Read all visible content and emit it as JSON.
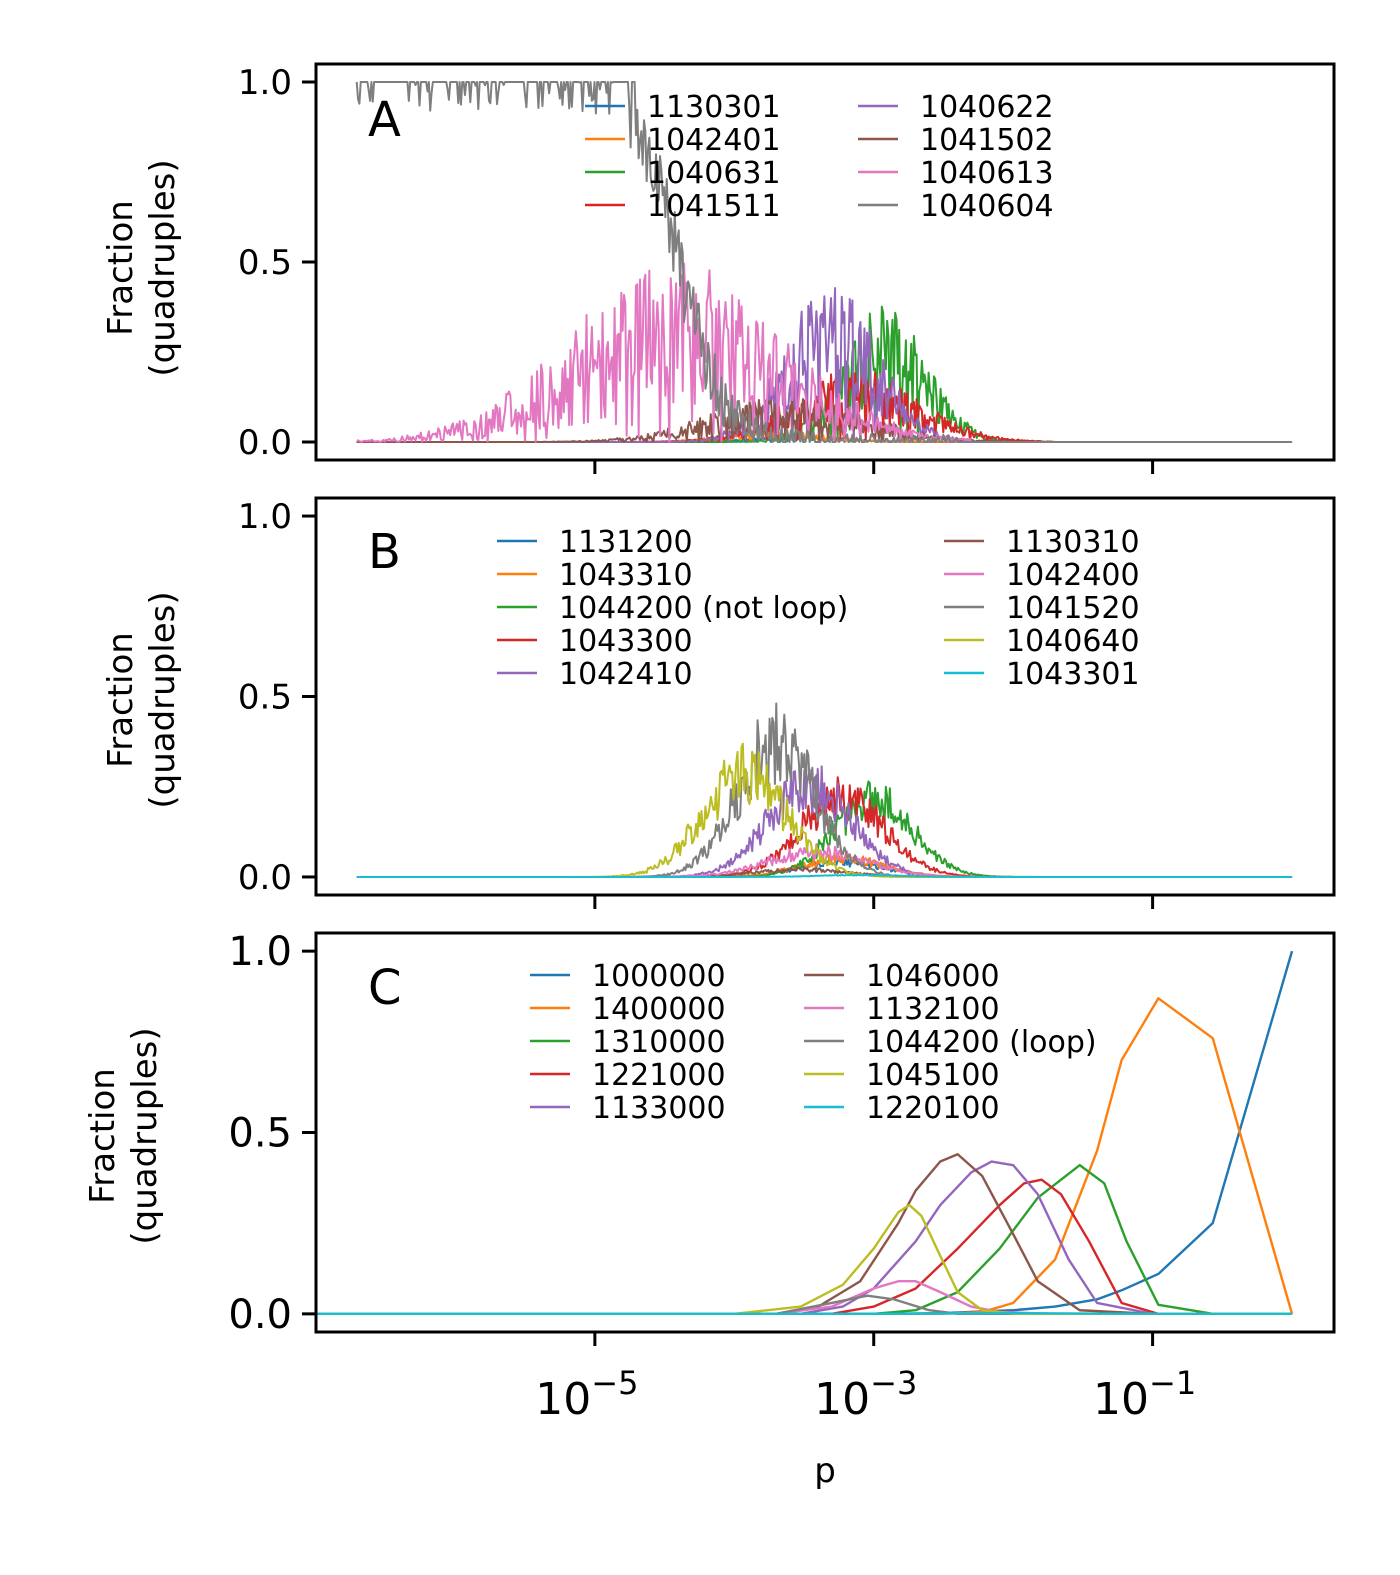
{
  "chart_data": [
    {
      "type": "line",
      "panel_label": "A",
      "title": "",
      "xlabel": "",
      "ylabel": [
        "Fraction",
        "(quadruples)"
      ],
      "xscale": "log",
      "xlim": [
        1e-07,
        2
      ],
      "ylim": [
        -0.05,
        1.05
      ],
      "yticks": [
        0.0,
        0.5,
        1.0
      ],
      "ytick_labels": [
        "0.0",
        "0.5",
        "1.0"
      ],
      "grid": false,
      "legend_columns": 2,
      "legend_placement": "top-center",
      "series": [
        {
          "name": "1130301",
          "color": "#1f77b4",
          "noisy": true,
          "peak_x": 0.0003,
          "peak_y": 0.01,
          "width": 0.35,
          "x_min": 3e-06,
          "x_max": 0.01
        },
        {
          "name": "1042401",
          "color": "#ff7f0e",
          "noisy": true,
          "peak_x": 0.0002,
          "peak_y": 0.02,
          "width": 0.35,
          "x_min": 1e-05,
          "x_max": 0.01
        },
        {
          "name": "1040631",
          "color": "#2ca02c",
          "noisy": true,
          "peak_x": 0.0012,
          "peak_y": 0.25,
          "width": 0.3,
          "x_min": 3e-05,
          "x_max": 0.02
        },
        {
          "name": "1041511",
          "color": "#d62728",
          "noisy": true,
          "peak_x": 0.00075,
          "peak_y": 0.13,
          "width": 0.45,
          "x_min": 1e-05,
          "x_max": 0.02
        },
        {
          "name": "1040622",
          "color": "#9467bd",
          "noisy": true,
          "peak_x": 0.0005,
          "peak_y": 0.28,
          "width": 0.33,
          "x_min": 1e-05,
          "x_max": 0.02
        },
        {
          "name": "1041502",
          "color": "#8c564b",
          "noisy": true,
          "peak_x": 0.00025,
          "peak_y": 0.08,
          "width": 0.55,
          "x_min": 3e-06,
          "x_max": 0.01
        },
        {
          "name": "1040613",
          "color": "#e377c2",
          "noisy": true,
          "peak_x": 4e-05,
          "peak_y": 0.3,
          "width": 0.75,
          "x_min": 1e-07,
          "x_max": 0.005
        },
        {
          "name": "1040604",
          "color": "#7f7f7f",
          "noisy": true,
          "sigmoid_mid": 4e-05,
          "sigmoid_width": 0.35,
          "x_min": 1e-07,
          "x_max": 1.0
        }
      ]
    },
    {
      "type": "line",
      "panel_label": "B",
      "title": "",
      "xlabel": "",
      "ylabel": [
        "Fraction",
        "(quadruples)"
      ],
      "xscale": "log",
      "xlim": [
        1e-07,
        2
      ],
      "ylim": [
        -0.05,
        1.05
      ],
      "yticks": [
        0.0,
        0.5,
        1.0
      ],
      "ytick_labels": [
        "0.0",
        "0.5",
        "1.0"
      ],
      "grid": false,
      "legend_columns": 2,
      "legend_placement": "top-center",
      "series": [
        {
          "name": "1131200",
          "color": "#1f77b4",
          "noisy": true,
          "peak_x": 0.0006,
          "peak_y": 0.04,
          "width": 0.3,
          "x_min": 1e-07,
          "x_max": 1.0
        },
        {
          "name": "1043310",
          "color": "#ff7f0e",
          "noisy": true,
          "peak_x": 0.0006,
          "peak_y": 0.05,
          "width": 0.3,
          "x_min": 1e-07,
          "x_max": 1.0
        },
        {
          "name": "1044200 (not loop)",
          "color": "#2ca02c",
          "noisy": true,
          "peak_x": 0.001,
          "peak_y": 0.21,
          "width": 0.28,
          "x_min": 1e-07,
          "x_max": 1.0
        },
        {
          "name": "1043300",
          "color": "#d62728",
          "noisy": true,
          "peak_x": 0.0006,
          "peak_y": 0.22,
          "width": 0.3,
          "x_min": 1e-07,
          "x_max": 1.0
        },
        {
          "name": "1042410",
          "color": "#9467bd",
          "noisy": true,
          "peak_x": 0.00035,
          "peak_y": 0.25,
          "width": 0.3,
          "x_min": 1e-07,
          "x_max": 1.0
        },
        {
          "name": "1130310",
          "color": "#8c564b",
          "noisy": true,
          "peak_x": 0.0003,
          "peak_y": 0.02,
          "width": 0.35,
          "x_min": 1e-07,
          "x_max": 1.0
        },
        {
          "name": "1042400",
          "color": "#e377c2",
          "noisy": true,
          "peak_x": 0.0004,
          "peak_y": 0.07,
          "width": 0.35,
          "x_min": 1e-07,
          "x_max": 1.0
        },
        {
          "name": "1041520",
          "color": "#7f7f7f",
          "noisy": true,
          "peak_x": 0.0002,
          "peak_y": 0.37,
          "width": 0.28,
          "x_min": 1e-07,
          "x_max": 1.0
        },
        {
          "name": "1040640",
          "color": "#bcbd22",
          "noisy": true,
          "peak_x": 0.00012,
          "peak_y": 0.28,
          "width": 0.3,
          "x_min": 1e-07,
          "x_max": 1.0
        },
        {
          "name": "1043301",
          "color": "#17becf",
          "noisy": true,
          "peak_x": 0.0008,
          "peak_y": 0.005,
          "width": 0.3,
          "x_min": 1e-07,
          "x_max": 1.0
        }
      ]
    },
    {
      "type": "line",
      "panel_label": "C",
      "title": "",
      "xlabel": "p",
      "ylabel": [
        "Fraction",
        "(quadruples)"
      ],
      "xscale": "log",
      "xlim": [
        1e-07,
        2
      ],
      "ylim": [
        -0.05,
        1.05
      ],
      "yticks": [
        0.0,
        0.5,
        1.0
      ],
      "ytick_labels": [
        "0.0",
        "0.5",
        "1.0"
      ],
      "xticks": [
        1e-05,
        0.001,
        0.1
      ],
      "xtick_labels": [
        {
          "base": "10",
          "exp": "−5"
        },
        {
          "base": "10",
          "exp": "−3"
        },
        {
          "base": "10",
          "exp": "−1"
        }
      ],
      "grid": false,
      "legend_columns": 2,
      "legend_placement": "top-center",
      "series": [
        {
          "name": "1000000",
          "color": "#1f77b4",
          "x": [
            1e-07,
            0.001,
            0.003,
            0.01,
            0.02,
            0.04,
            0.06,
            0.11,
            0.27,
            1.0
          ],
          "y": [
            0,
            0,
            0.002,
            0.01,
            0.02,
            0.04,
            0.065,
            0.11,
            0.25,
            1.0
          ]
        },
        {
          "name": "1400000",
          "color": "#ff7f0e",
          "x": [
            1e-07,
            0.003,
            0.006,
            0.01,
            0.02,
            0.04,
            0.06,
            0.11,
            0.27,
            1.0
          ],
          "y": [
            0,
            0,
            0.005,
            0.03,
            0.15,
            0.45,
            0.7,
            0.87,
            0.76,
            0.0
          ]
        },
        {
          "name": "1310000",
          "color": "#2ca02c",
          "x": [
            1e-07,
            0.001,
            0.002,
            0.004,
            0.008,
            0.015,
            0.03,
            0.045,
            0.065,
            0.11,
            0.27,
            1.0
          ],
          "y": [
            0,
            0,
            0.01,
            0.06,
            0.18,
            0.32,
            0.41,
            0.36,
            0.2,
            0.025,
            0.0,
            0.0
          ]
        },
        {
          "name": "1221000",
          "color": "#d62728",
          "x": [
            1e-07,
            0.0005,
            0.001,
            0.002,
            0.004,
            0.008,
            0.012,
            0.016,
            0.022,
            0.035,
            0.06,
            0.11,
            1.0
          ],
          "y": [
            0,
            0,
            0.02,
            0.07,
            0.18,
            0.3,
            0.36,
            0.37,
            0.33,
            0.2,
            0.03,
            0.0,
            0.0
          ]
        },
        {
          "name": "1133000",
          "color": "#9467bd",
          "x": [
            1e-07,
            0.0003,
            0.0006,
            0.001,
            0.002,
            0.003,
            0.005,
            0.007,
            0.01,
            0.015,
            0.025,
            0.04,
            0.1,
            1.0
          ],
          "y": [
            0,
            0,
            0.02,
            0.07,
            0.2,
            0.3,
            0.39,
            0.42,
            0.41,
            0.33,
            0.15,
            0.03,
            0.0,
            0.0
          ]
        },
        {
          "name": "1046000",
          "color": "#8c564b",
          "x": [
            1e-07,
            0.0002,
            0.0004,
            0.0008,
            0.0015,
            0.002,
            0.003,
            0.004,
            0.006,
            0.01,
            0.015,
            0.03,
            0.1,
            1.0
          ],
          "y": [
            0,
            0,
            0.02,
            0.09,
            0.25,
            0.34,
            0.42,
            0.44,
            0.38,
            0.22,
            0.09,
            0.01,
            0.0,
            0.0
          ]
        },
        {
          "name": "1132100",
          "color": "#e377c2",
          "x": [
            1e-07,
            0.0002,
            0.0005,
            0.001,
            0.0015,
            0.002,
            0.003,
            0.005,
            0.008,
            0.02,
            1.0
          ],
          "y": [
            0,
            0,
            0.02,
            0.07,
            0.09,
            0.09,
            0.06,
            0.02,
            0.005,
            0.0,
            0.0
          ]
        },
        {
          "name": "1044200 (loop)",
          "color": "#7f7f7f",
          "x": [
            1e-07,
            0.0002,
            0.0005,
            0.0009,
            0.0014,
            0.0025,
            0.004,
            0.008,
            1.0
          ],
          "y": [
            0,
            0,
            0.03,
            0.05,
            0.04,
            0.01,
            0.0,
            0.0,
            0.0
          ]
        },
        {
          "name": "1045100",
          "color": "#bcbd22",
          "x": [
            1e-07,
            0.0001,
            0.0003,
            0.0006,
            0.001,
            0.0015,
            0.0018,
            0.0022,
            0.003,
            0.004,
            0.006,
            0.01,
            1.0
          ],
          "y": [
            0,
            0,
            0.02,
            0.08,
            0.18,
            0.28,
            0.3,
            0.27,
            0.16,
            0.06,
            0.01,
            0.0,
            0.0
          ]
        },
        {
          "name": "1220100",
          "color": "#17becf",
          "x": [
            1e-07,
            0.001,
            0.01,
            0.1,
            1.0
          ],
          "y": [
            0,
            0,
            0.002,
            0.0,
            0.0
          ]
        }
      ]
    }
  ]
}
